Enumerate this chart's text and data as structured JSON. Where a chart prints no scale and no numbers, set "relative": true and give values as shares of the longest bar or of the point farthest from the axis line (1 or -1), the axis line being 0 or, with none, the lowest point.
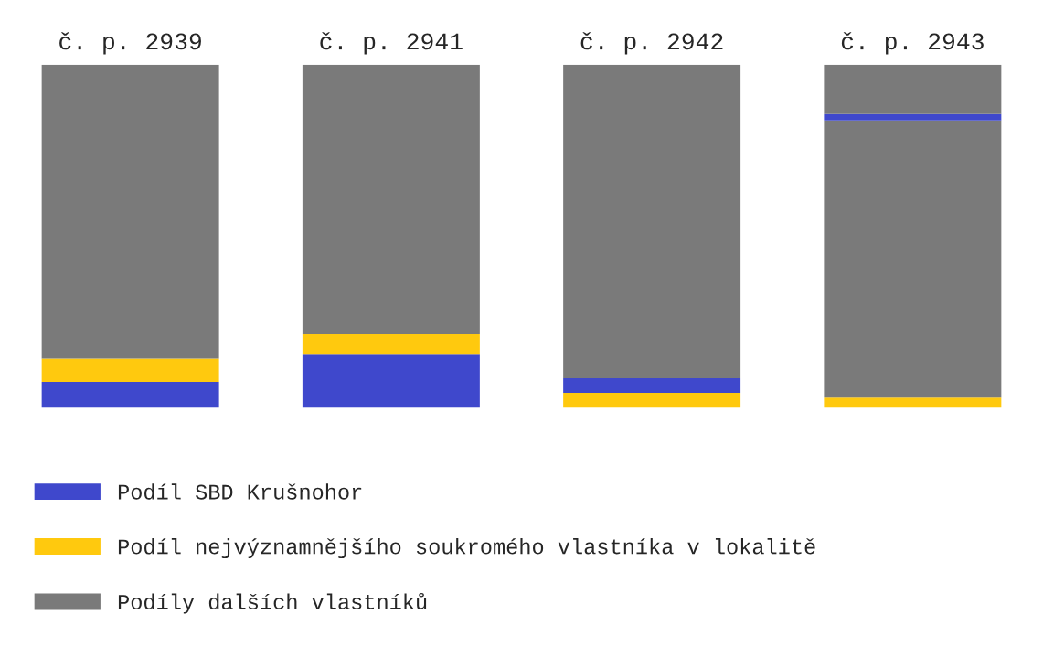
{
  "chart_data": {
    "type": "bar",
    "relative": true,
    "stacked": true,
    "categories": [
      "č. p. 2939",
      "č. p. 2941",
      "č. p. 2942",
      "č. p. 2943"
    ],
    "series": [
      {
        "name": "Podíl SBD Krušnohor",
        "color": "#3f48cc",
        "values": [
          0.073,
          0.155,
          null,
          null
        ]
      },
      {
        "name": "Podíl nejvýznamnějšího soukromého vlastníka v lokalitě",
        "color": "#ffc90e",
        "values": [
          0.068,
          0.057,
          0.041,
          0.027
        ]
      },
      {
        "color": "#3f48cc",
        "values": [
          null,
          null,
          0.043,
          null
        ]
      },
      {
        "name": "Podíly dalších vlastníků",
        "color": "#7a7a7a",
        "values": [
          0.859,
          0.788,
          0.916,
          0.81
        ]
      },
      {
        "color": "#3f48cc",
        "values": [
          null,
          null,
          null,
          0.019
        ]
      },
      {
        "color": "#7a7a7a",
        "values": [
          null,
          null,
          null,
          0.144
        ]
      }
    ],
    "legend": "bottom"
  }
}
